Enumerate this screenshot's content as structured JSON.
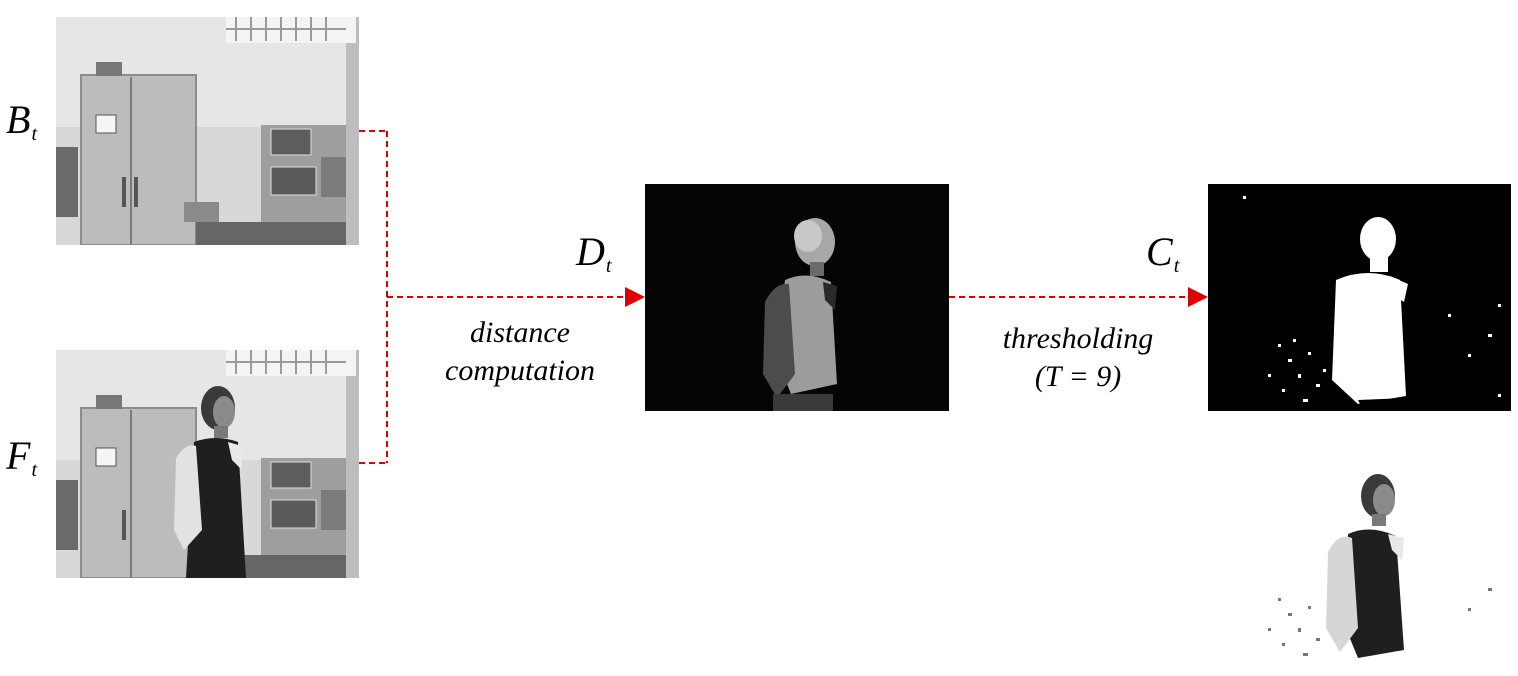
{
  "labels": {
    "background_symbol": "B",
    "background_sub": "t",
    "frame_symbol": "F",
    "frame_sub": "t",
    "difference_symbol": "D",
    "difference_sub": "t",
    "change_symbol": "C",
    "change_sub": "t"
  },
  "steps": {
    "distance_line1": "distance",
    "distance_line2": "computation",
    "threshold_line1": "thresholding",
    "threshold_line2": "(T = 9)"
  },
  "colors": {
    "arrow": "#e00000"
  },
  "images": {
    "background_frame": "grayscale lab room background",
    "current_frame": "grayscale lab room with standing man",
    "difference_image": "dark difference image of man",
    "change_mask": "binary white silhouette mask",
    "masked_foreground": "man on white background"
  }
}
